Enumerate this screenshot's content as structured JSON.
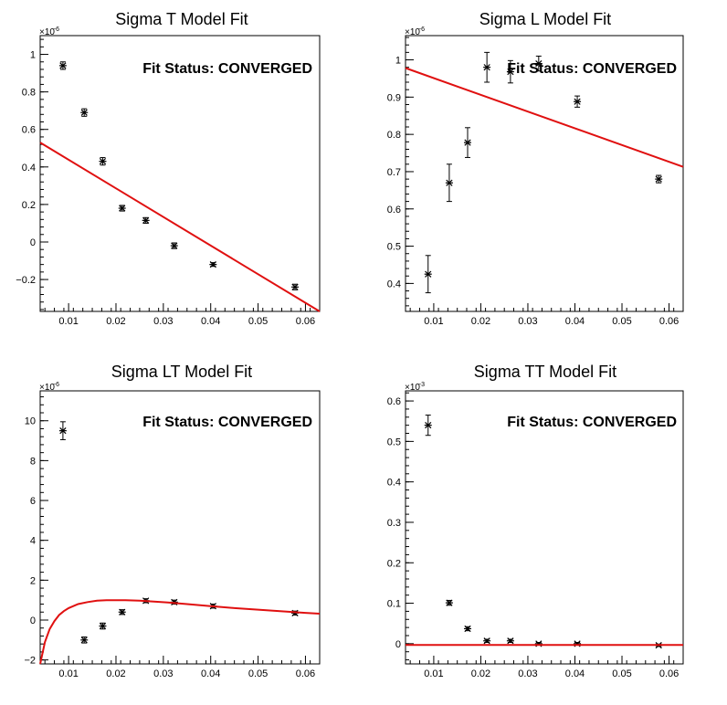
{
  "chart_data": [
    {
      "type": "scatter",
      "title": "Sigma T Model Fit",
      "status_text": "Fit Status: CONVERGED",
      "y_multiplier": "×10",
      "y_exponent": "−6",
      "xlim": [
        0.004,
        0.063
      ],
      "ylim": [
        -0.37,
        1.1
      ],
      "xticks": [
        0.01,
        0.02,
        0.03,
        0.04,
        0.05,
        0.06
      ],
      "xtick_labels": [
        "0.01",
        "0.02",
        "0.03",
        "0.04",
        "0.05",
        "0.06"
      ],
      "yticks": [
        -0.2,
        0,
        0.2,
        0.4,
        0.6,
        0.8,
        1
      ],
      "ytick_labels": [
        "−0.2",
        "0",
        "0.2",
        "0.4",
        "0.6",
        "0.8",
        "1"
      ],
      "points": [
        {
          "x": 0.0088,
          "y": 0.94,
          "err": 0.02
        },
        {
          "x": 0.0133,
          "y": 0.69,
          "err": 0.02
        },
        {
          "x": 0.0172,
          "y": 0.43,
          "err": 0.02
        },
        {
          "x": 0.0213,
          "y": 0.18,
          "err": 0.015
        },
        {
          "x": 0.0263,
          "y": 0.115,
          "err": 0.015
        },
        {
          "x": 0.0323,
          "y": -0.02,
          "err": 0.015
        },
        {
          "x": 0.0405,
          "y": -0.12,
          "err": 0.01
        },
        {
          "x": 0.0578,
          "y": -0.24,
          "err": 0.015
        }
      ],
      "fit_curve": {
        "x": [
          0.004,
          0.063
        ],
        "y": [
          0.53,
          -0.37
        ]
      }
    },
    {
      "type": "scatter",
      "title": "Sigma L Model Fit",
      "status_text": "Fit Status: CONVERGED",
      "y_multiplier": "×10",
      "y_exponent": "−6",
      "xlim": [
        0.004,
        0.063
      ],
      "ylim": [
        0.325,
        1.065
      ],
      "xticks": [
        0.01,
        0.02,
        0.03,
        0.04,
        0.05,
        0.06
      ],
      "xtick_labels": [
        "0.01",
        "0.02",
        "0.03",
        "0.04",
        "0.05",
        "0.06"
      ],
      "yticks": [
        0.4,
        0.5,
        0.6,
        0.7,
        0.8,
        0.9,
        1
      ],
      "ytick_labels": [
        "0.4",
        "0.5",
        "0.6",
        "0.7",
        "0.8",
        "0.9",
        "1"
      ],
      "points": [
        {
          "x": 0.0088,
          "y": 0.425,
          "err": 0.05
        },
        {
          "x": 0.0133,
          "y": 0.67,
          "err": 0.05
        },
        {
          "x": 0.0172,
          "y": 0.778,
          "err": 0.04
        },
        {
          "x": 0.0213,
          "y": 0.98,
          "err": 0.04
        },
        {
          "x": 0.0263,
          "y": 0.968,
          "err": 0.03
        },
        {
          "x": 0.0323,
          "y": 0.99,
          "err": 0.02
        },
        {
          "x": 0.0405,
          "y": 0.888,
          "err": 0.015
        },
        {
          "x": 0.0578,
          "y": 0.68,
          "err": 0.01
        }
      ],
      "fit_curve": {
        "x": [
          0.004,
          0.063
        ],
        "y": [
          0.978,
          0.713
        ]
      }
    },
    {
      "type": "scatter",
      "title": "Sigma LT Model Fit",
      "status_text": "Fit Status: CONVERGED",
      "y_multiplier": "×10",
      "y_exponent": "−6",
      "xlim": [
        0.004,
        0.063
      ],
      "ylim": [
        -2.2,
        11.5
      ],
      "xticks": [
        0.01,
        0.02,
        0.03,
        0.04,
        0.05,
        0.06
      ],
      "xtick_labels": [
        "0.01",
        "0.02",
        "0.03",
        "0.04",
        "0.05",
        "0.06"
      ],
      "yticks": [
        -2,
        0,
        2,
        4,
        6,
        8,
        10
      ],
      "ytick_labels": [
        "−2",
        "0",
        "2",
        "4",
        "6",
        "8",
        "10"
      ],
      "points": [
        {
          "x": 0.0088,
          "y": 9.5,
          "err": 0.45
        },
        {
          "x": 0.0133,
          "y": -1.0,
          "err": 0.15
        },
        {
          "x": 0.0172,
          "y": -0.3,
          "err": 0.15
        },
        {
          "x": 0.0213,
          "y": 0.4,
          "err": 0.12
        },
        {
          "x": 0.0263,
          "y": 0.97,
          "err": 0.1
        },
        {
          "x": 0.0323,
          "y": 0.9,
          "err": 0.1
        },
        {
          "x": 0.0405,
          "y": 0.7,
          "err": 0.1
        },
        {
          "x": 0.0578,
          "y": 0.35,
          "err": 0.1
        }
      ],
      "fit_curve": {
        "x": [
          0.004,
          0.005,
          0.006,
          0.007,
          0.008,
          0.009,
          0.01,
          0.012,
          0.014,
          0.016,
          0.018,
          0.02,
          0.022,
          0.025,
          0.028,
          0.031,
          0.035,
          0.04,
          0.045,
          0.05,
          0.055,
          0.06,
          0.063
        ],
        "y": [
          -2.2,
          -1.1,
          -0.45,
          -0.05,
          0.25,
          0.45,
          0.6,
          0.8,
          0.9,
          0.97,
          1.0,
          1.0,
          1.0,
          0.97,
          0.93,
          0.88,
          0.8,
          0.7,
          0.6,
          0.52,
          0.44,
          0.36,
          0.32
        ]
      }
    },
    {
      "type": "scatter",
      "title": "Sigma TT Model Fit",
      "status_text": "Fit Status: CONVERGED",
      "y_multiplier": "×10",
      "y_exponent": "−3",
      "xlim": [
        0.004,
        0.063
      ],
      "ylim": [
        -0.05,
        0.625
      ],
      "xticks": [
        0.01,
        0.02,
        0.03,
        0.04,
        0.05,
        0.06
      ],
      "xtick_labels": [
        "0.01",
        "0.02",
        "0.03",
        "0.04",
        "0.05",
        "0.06"
      ],
      "yticks": [
        0,
        0.1,
        0.2,
        0.3,
        0.4,
        0.5,
        0.6
      ],
      "ytick_labels": [
        "0",
        "0.1",
        "0.2",
        "0.3",
        "0.4",
        "0.5",
        "0.6"
      ],
      "points": [
        {
          "x": 0.0088,
          "y": 0.54,
          "err": 0.025
        },
        {
          "x": 0.0133,
          "y": 0.101,
          "err": 0.006
        },
        {
          "x": 0.0172,
          "y": 0.037,
          "err": 0.005
        },
        {
          "x": 0.0213,
          "y": 0.007,
          "err": 0.004
        },
        {
          "x": 0.0263,
          "y": 0.007,
          "err": 0.004
        },
        {
          "x": 0.0323,
          "y": 0.0,
          "err": 0.003
        },
        {
          "x": 0.0405,
          "y": 0.0,
          "err": 0.003
        },
        {
          "x": 0.0578,
          "y": -0.004,
          "err": 0.003
        }
      ],
      "fit_curve": {
        "x": [
          0.004,
          0.063
        ],
        "y": [
          -0.003,
          -0.003
        ]
      }
    }
  ],
  "colors": {
    "fit_line": "#e01010",
    "marker": "#000000",
    "axis": "#000000",
    "background": "#ffffff"
  }
}
